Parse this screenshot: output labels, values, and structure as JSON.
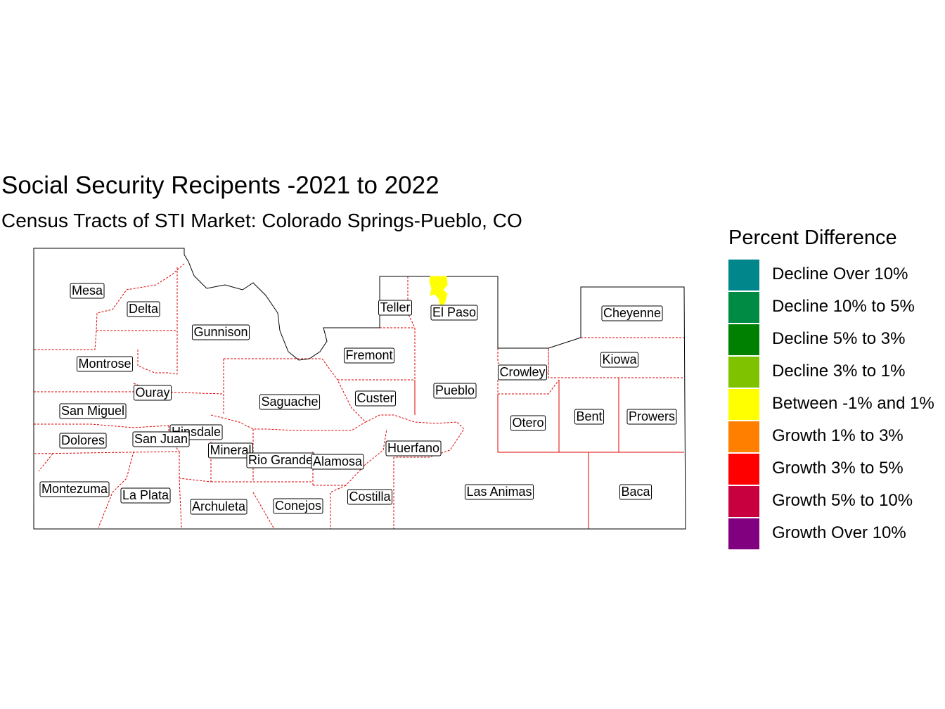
{
  "title": "Social Security Recipents -2021 to 2022",
  "subtitle": "Census Tracts of STI Market: Colorado Springs-Pueblo, CO",
  "legend": {
    "title": "Percent Difference",
    "items": [
      {
        "label": "Decline Over 10%",
        "color": "#00868B"
      },
      {
        "label": "Decline 10% to 5%",
        "color": "#008B45"
      },
      {
        "label": "Decline 5% to 3%",
        "color": "#008000"
      },
      {
        "label": "Decline 3% to 1%",
        "color": "#7FC300"
      },
      {
        "label": "Between -1% and 1%",
        "color": "#FFFF00"
      },
      {
        "label": "Growth 1% to 3%",
        "color": "#FF8000"
      },
      {
        "label": "Growth 3% to 5%",
        "color": "#FF0000"
      },
      {
        "label": "Growth 5% to 10%",
        "color": "#C80040"
      },
      {
        "label": "Growth Over 10%",
        "color": "#800080"
      }
    ]
  },
  "counties": [
    "Mesa",
    "Delta",
    "Gunnison",
    "Montrose",
    "Ouray",
    "San Miguel",
    "Dolores",
    "Hinsdale",
    "San Juan",
    "Mineral",
    "Rio Grande",
    "Alamosa",
    "Montezuma",
    "La Plata",
    "Archuleta",
    "Conejos",
    "Costilla",
    "Saguache",
    "Custer",
    "Huerfano",
    "Fremont",
    "Teller",
    "El Paso",
    "Pueblo",
    "Crowley",
    "Otero",
    "Bent",
    "Prowers",
    "Kiowa",
    "Cheyenne",
    "Las Animas",
    "Baca"
  ],
  "colors": {
    "market_outline": "#000000",
    "county_border": "#E00000",
    "highlighted_tract": "#FFFF00"
  }
}
